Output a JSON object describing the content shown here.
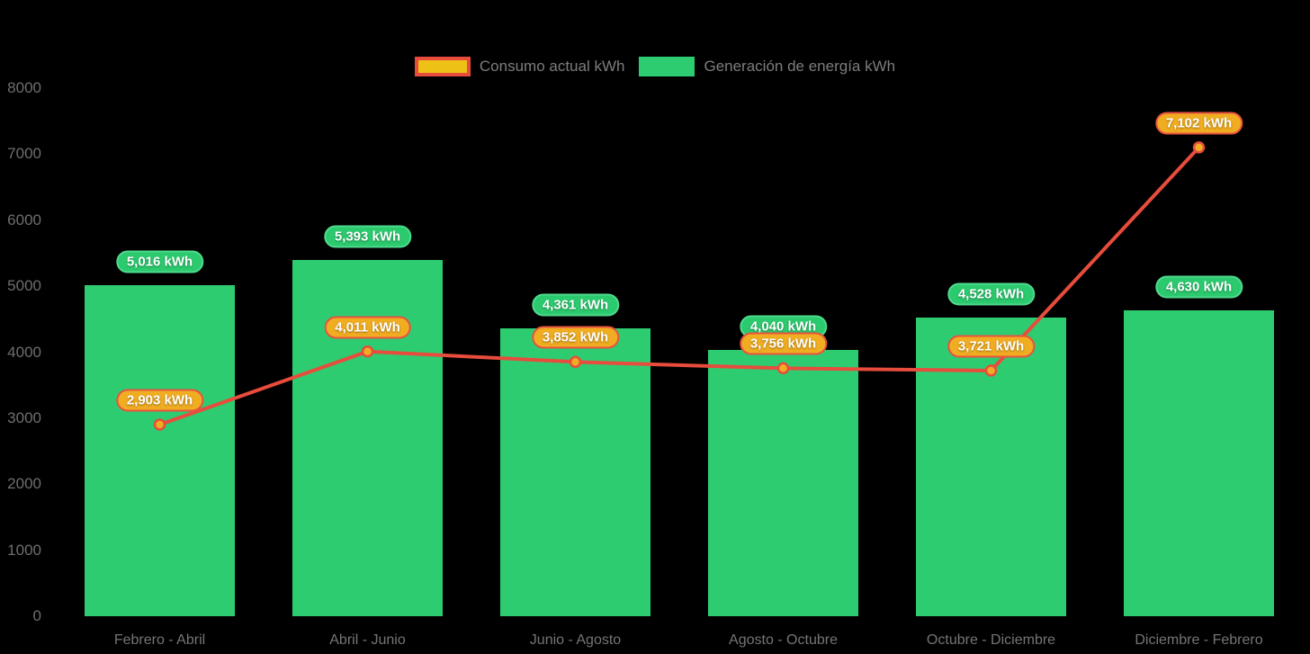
{
  "colors": {
    "background": "#000000",
    "bar_green": "#2ECC71",
    "line_red": "#E74C3C",
    "marker_fill": "#F0AD24",
    "legend_swatch_yellow": "#EEC117",
    "green_label_bg": "#2BCA6E",
    "green_label_border": "#4FDA8C",
    "orange_label_bg": "#F0AD21",
    "orange_label_border": "#E85240",
    "axis_text": "#6E6E6E",
    "legend_text": "#7D7D7D"
  },
  "chart_data": {
    "type": "combo",
    "title": "",
    "xlabel": "",
    "ylabel": "",
    "categories": [
      "Febrero - Abril",
      "Abril - Junio",
      "Junio - Agosto",
      "Agosto - Octubre",
      "Octubre - Diciembre",
      "Diciembre - Febrero"
    ],
    "series": [
      {
        "name": "Consumo actual kWh",
        "type": "line",
        "values": [
          2903,
          4011,
          3852,
          3756,
          3721,
          7102
        ],
        "labels": [
          "2,903 kWh",
          "4,011 kWh",
          "3,852 kWh",
          "3,756 kWh",
          "3,721 kWh",
          "7,102 kWh"
        ],
        "line_color": "#E74C3C",
        "marker_fill": "#F0AD24"
      },
      {
        "name": "Generación de energía kWh",
        "type": "bar",
        "values": [
          5016,
          5393,
          4361,
          4040,
          4528,
          4630
        ],
        "labels": [
          "5,016 kWh",
          "5,393 kWh",
          "4,361 kWh",
          "4,040 kWh",
          "4,528 kWh",
          "4,630 kWh"
        ],
        "bar_color": "#2ECC71"
      }
    ],
    "y_ticks": [
      8000,
      7000,
      6000,
      5000,
      4000,
      3000,
      2000,
      1000,
      0
    ],
    "ylim": [
      0,
      8000
    ],
    "grid": false,
    "legend_position": "top-center"
  }
}
